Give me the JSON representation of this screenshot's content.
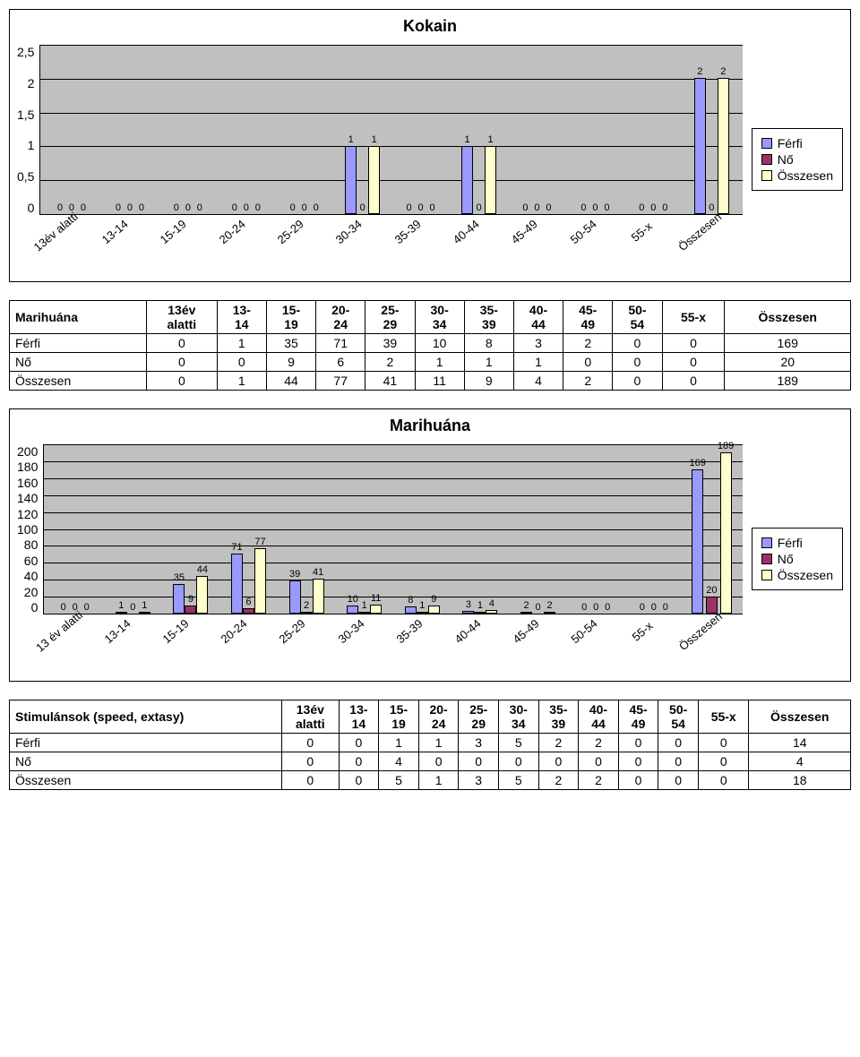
{
  "colors": {
    "ferfi": "#9999ff",
    "no": "#993366",
    "osszesen": "#ffffcc",
    "plot_bg": "#c0c0c0",
    "border": "#000000"
  },
  "legend": {
    "ferfi": "Férfi",
    "no": "Nő",
    "osszesen": "Összesen"
  },
  "chart1": {
    "title": "Kokain",
    "ylim": 2.5,
    "yticks": [
      "2,5",
      "2",
      "1,5",
      "1",
      "0,5",
      "0"
    ],
    "categories": [
      "13év alatti",
      "13-14",
      "15-19",
      "20-24",
      "25-29",
      "30-34",
      "35-39",
      "40-44",
      "45-49",
      "50-54",
      "55-x",
      "Összesen"
    ],
    "series": {
      "ferfi": [
        0,
        0,
        0,
        0,
        0,
        1,
        0,
        1,
        0,
        0,
        0,
        2
      ],
      "no": [
        0,
        0,
        0,
        0,
        0,
        0,
        0,
        0,
        0,
        0,
        0,
        0
      ],
      "osszesen": [
        0,
        0,
        0,
        0,
        0,
        1,
        0,
        1,
        0,
        0,
        0,
        2
      ]
    }
  },
  "table1": {
    "title": "Marihuána",
    "columns": [
      "13év alatti",
      "13-14",
      "15-19",
      "20-24",
      "25-29",
      "30-34",
      "35-39",
      "40-44",
      "45-49",
      "50-54",
      "55-x",
      "Összesen"
    ],
    "columns_wrapped": [
      "13év\nalatti",
      "13-\n14",
      "15-\n19",
      "20-\n24",
      "25-\n29",
      "30-\n34",
      "35-\n39",
      "40-\n44",
      "45-\n49",
      "50-\n54",
      "55-x",
      "Összesen"
    ],
    "rows": [
      {
        "label": "Férfi",
        "cells": [
          0,
          1,
          35,
          71,
          39,
          10,
          8,
          3,
          2,
          0,
          0,
          169
        ]
      },
      {
        "label": "Nő",
        "cells": [
          0,
          0,
          9,
          6,
          2,
          1,
          1,
          1,
          0,
          0,
          0,
          20
        ]
      },
      {
        "label": "Összesen",
        "cells": [
          0,
          1,
          44,
          77,
          41,
          11,
          9,
          4,
          2,
          0,
          0,
          189
        ]
      }
    ]
  },
  "chart2": {
    "title": "Marihuána",
    "ylim": 200,
    "yticks": [
      "200",
      "180",
      "160",
      "140",
      "120",
      "100",
      "80",
      "60",
      "40",
      "20",
      "0"
    ],
    "categories": [
      "13 év alatti",
      "13-14",
      "15-19",
      "20-24",
      "25-29",
      "30-34",
      "35-39",
      "40-44",
      "45-49",
      "50-54",
      "55-x",
      "Összesen"
    ],
    "series": {
      "ferfi": [
        0,
        1,
        35,
        71,
        39,
        10,
        8,
        3,
        2,
        0,
        0,
        169
      ],
      "no": [
        0,
        0,
        9,
        6,
        2,
        1,
        1,
        1,
        0,
        0,
        0,
        20
      ],
      "osszesen": [
        0,
        1,
        44,
        77,
        41,
        11,
        9,
        4,
        2,
        0,
        0,
        189
      ]
    }
  },
  "table2": {
    "title": "Stimulánsok (speed, extasy)",
    "columns_wrapped": [
      "13év\nalatti",
      "13-\n14",
      "15-\n19",
      "20-\n24",
      "25-\n29",
      "30-\n34",
      "35-\n39",
      "40-\n44",
      "45-\n49",
      "50-\n54",
      "55-x",
      "Összesen"
    ],
    "rows": [
      {
        "label": "Férfi",
        "cells": [
          0,
          0,
          1,
          1,
          3,
          5,
          2,
          2,
          0,
          0,
          0,
          14
        ]
      },
      {
        "label": "Nő",
        "cells": [
          0,
          0,
          4,
          0,
          0,
          0,
          0,
          0,
          0,
          0,
          0,
          4
        ]
      },
      {
        "label": "Összesen",
        "cells": [
          0,
          0,
          5,
          1,
          3,
          5,
          2,
          2,
          0,
          0,
          0,
          18
        ]
      }
    ]
  }
}
